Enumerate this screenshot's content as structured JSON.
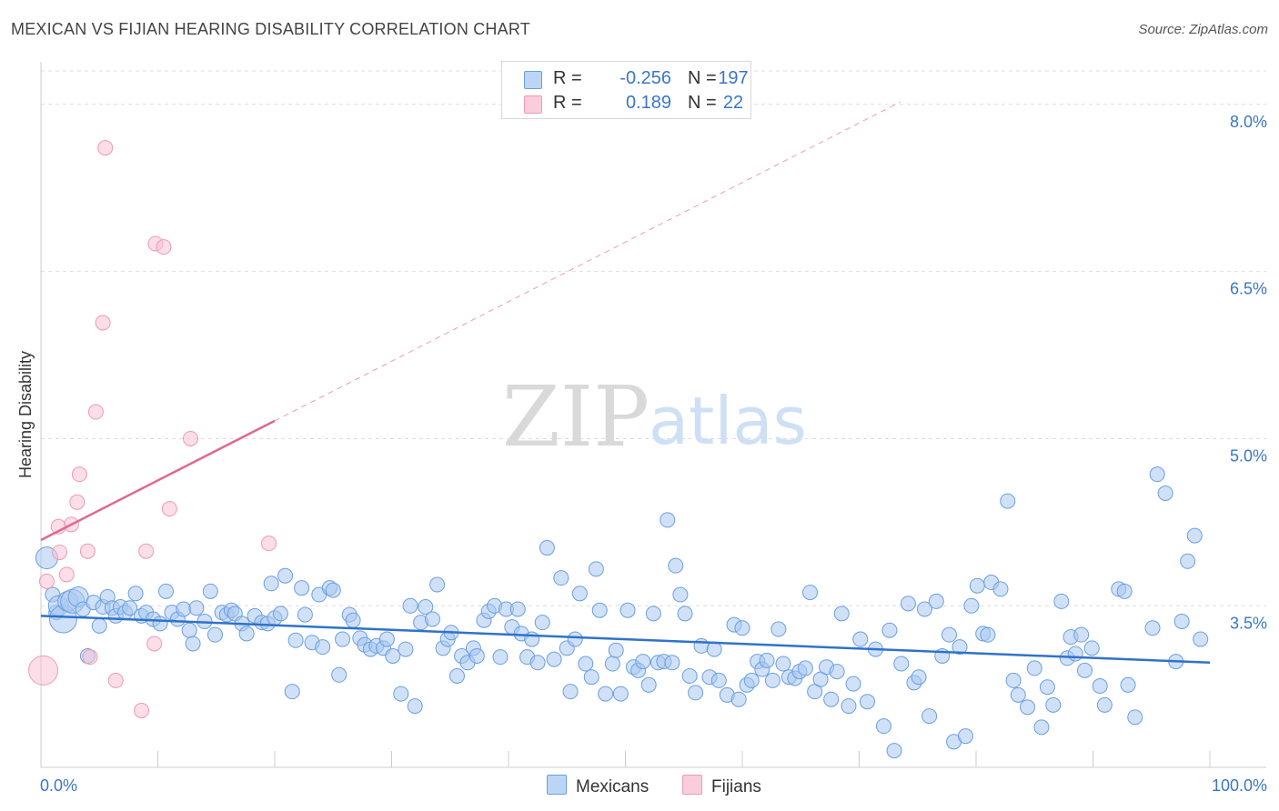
{
  "title": "MEXICAN VS FIJIAN HEARING DISABILITY CORRELATION CHART",
  "source": "Source: ZipAtlas.com",
  "watermark": {
    "zip": "ZIP",
    "atlas": "atlas"
  },
  "legend": {
    "rows": [
      {
        "r_label": "R =",
        "r_value": "-0.256",
        "n_label": "N =",
        "n_value": "197"
      },
      {
        "r_label": "R =",
        "r_value": "0.189",
        "n_label": "N =",
        "n_value": "22"
      }
    ]
  },
  "bottom_legend": {
    "mexicans": "Mexicans",
    "fijians": "Fijians"
  },
  "colors": {
    "blue_fill": "#a9c8f0",
    "blue_stroke": "#6a9fe0",
    "blue_line": "#2f72cc",
    "pink_fill": "#f7c3d3",
    "pink_stroke": "#ee9ab4",
    "pink_line": "#e06890",
    "axis_text": "#3a76c8",
    "grid": "#dddddd"
  },
  "chart_data": {
    "type": "scatter",
    "title": "MEXICAN VS FIJIAN HEARING DISABILITY CORRELATION CHART",
    "xlabel": "",
    "ylabel": "Hearing Disability",
    "xlim": [
      0,
      100
    ],
    "ylim": [
      2.05,
      8.3
    ],
    "x_tick_labels": [
      "0.0%",
      "100.0%"
    ],
    "y_ticks": [
      3.5,
      5.0,
      6.5,
      8.0
    ],
    "y_tick_labels": [
      "3.5%",
      "5.0%",
      "6.5%",
      "8.0%"
    ],
    "series": [
      {
        "name": "Mexicans",
        "r": -0.256,
        "n": 197,
        "trend": {
          "x0": 0,
          "y0": 3.41,
          "x1": 100,
          "y1": 2.99
        },
        "points": [
          [
            0.5,
            3.93
          ],
          [
            1.0,
            3.6
          ],
          [
            1.3,
            3.44
          ],
          [
            1.5,
            3.5
          ],
          [
            1.9,
            3.38
          ],
          [
            2.3,
            3.54
          ],
          [
            2.7,
            3.54
          ],
          [
            3.2,
            3.58
          ],
          [
            3.6,
            3.47
          ],
          [
            4.0,
            3.05
          ],
          [
            4.5,
            3.53
          ],
          [
            5.0,
            3.32
          ],
          [
            5.3,
            3.49
          ],
          [
            5.7,
            3.58
          ],
          [
            6.1,
            3.48
          ],
          [
            6.4,
            3.41
          ],
          [
            6.8,
            3.49
          ],
          [
            7.2,
            3.44
          ],
          [
            7.6,
            3.48
          ],
          [
            8.1,
            3.61
          ],
          [
            8.6,
            3.41
          ],
          [
            9.0,
            3.44
          ],
          [
            9.6,
            3.38
          ],
          [
            10.2,
            3.34
          ],
          [
            10.7,
            3.63
          ],
          [
            11.2,
            3.44
          ],
          [
            11.7,
            3.38
          ],
          [
            12.2,
            3.47
          ],
          [
            12.7,
            3.28
          ],
          [
            13.0,
            3.16
          ],
          [
            13.3,
            3.48
          ],
          [
            14.0,
            3.36
          ],
          [
            14.5,
            3.63
          ],
          [
            14.9,
            3.24
          ],
          [
            15.5,
            3.44
          ],
          [
            15.9,
            3.42
          ],
          [
            16.3,
            3.46
          ],
          [
            16.6,
            3.43
          ],
          [
            17.2,
            3.34
          ],
          [
            17.6,
            3.25
          ],
          [
            18.3,
            3.41
          ],
          [
            18.9,
            3.35
          ],
          [
            19.4,
            3.34
          ],
          [
            19.7,
            3.7
          ],
          [
            20.0,
            3.39
          ],
          [
            20.5,
            3.43
          ],
          [
            20.9,
            3.77
          ],
          [
            21.5,
            2.73
          ],
          [
            21.8,
            3.19
          ],
          [
            22.3,
            3.66
          ],
          [
            22.6,
            3.42
          ],
          [
            23.2,
            3.17
          ],
          [
            23.8,
            3.6
          ],
          [
            24.1,
            3.13
          ],
          [
            24.7,
            3.66
          ],
          [
            25.0,
            3.64
          ],
          [
            25.5,
            2.88
          ],
          [
            25.8,
            3.2
          ],
          [
            26.4,
            3.42
          ],
          [
            26.7,
            3.37
          ],
          [
            27.3,
            3.21
          ],
          [
            27.7,
            3.15
          ],
          [
            28.2,
            3.11
          ],
          [
            28.7,
            3.14
          ],
          [
            29.3,
            3.12
          ],
          [
            29.6,
            3.2
          ],
          [
            30.1,
            3.05
          ],
          [
            30.8,
            2.71
          ],
          [
            31.2,
            3.11
          ],
          [
            31.6,
            3.5
          ],
          [
            32.0,
            2.6
          ],
          [
            32.5,
            3.35
          ],
          [
            32.9,
            3.49
          ],
          [
            33.5,
            3.38
          ],
          [
            33.9,
            3.69
          ],
          [
            34.4,
            3.12
          ],
          [
            34.8,
            3.2
          ],
          [
            35.1,
            3.26
          ],
          [
            35.6,
            2.87
          ],
          [
            36.0,
            3.05
          ],
          [
            36.5,
            2.99
          ],
          [
            37.0,
            3.12
          ],
          [
            37.3,
            3.05
          ],
          [
            37.9,
            3.37
          ],
          [
            38.3,
            3.45
          ],
          [
            38.8,
            3.5
          ],
          [
            39.3,
            3.04
          ],
          [
            39.8,
            3.47
          ],
          [
            40.3,
            3.31
          ],
          [
            40.8,
            3.47
          ],
          [
            41.1,
            3.25
          ],
          [
            41.6,
            3.04
          ],
          [
            42.0,
            3.2
          ],
          [
            42.5,
            2.99
          ],
          [
            42.9,
            3.35
          ],
          [
            43.3,
            4.02
          ],
          [
            43.9,
            3.02
          ],
          [
            44.5,
            3.75
          ],
          [
            45.0,
            3.12
          ],
          [
            45.3,
            2.73
          ],
          [
            45.7,
            3.2
          ],
          [
            46.1,
            3.61
          ],
          [
            46.6,
            2.98
          ],
          [
            47.1,
            2.86
          ],
          [
            47.5,
            3.83
          ],
          [
            47.8,
            3.46
          ],
          [
            48.3,
            2.71
          ],
          [
            48.9,
            2.98
          ],
          [
            49.2,
            3.1
          ],
          [
            49.6,
            2.71
          ],
          [
            50.2,
            3.46
          ],
          [
            50.7,
            2.95
          ],
          [
            51.1,
            2.92
          ],
          [
            51.5,
            3.0
          ],
          [
            52.0,
            2.79
          ],
          [
            52.4,
            3.43
          ],
          [
            52.8,
            2.99
          ],
          [
            53.3,
            3.0
          ],
          [
            53.6,
            4.27
          ],
          [
            54.0,
            2.99
          ],
          [
            54.3,
            3.86
          ],
          [
            54.7,
            3.6
          ],
          [
            55.1,
            3.43
          ],
          [
            55.5,
            2.87
          ],
          [
            56.0,
            2.72
          ],
          [
            56.5,
            3.14
          ],
          [
            57.2,
            2.86
          ],
          [
            57.6,
            3.11
          ],
          [
            58.0,
            2.83
          ],
          [
            58.7,
            2.7
          ],
          [
            59.3,
            3.33
          ],
          [
            59.7,
            2.66
          ],
          [
            60.0,
            3.3
          ],
          [
            60.4,
            2.79
          ],
          [
            60.8,
            2.83
          ],
          [
            61.3,
            3.0
          ],
          [
            61.7,
            2.93
          ],
          [
            62.1,
            3.01
          ],
          [
            62.6,
            2.83
          ],
          [
            63.1,
            3.29
          ],
          [
            63.5,
            2.98
          ],
          [
            64.0,
            2.86
          ],
          [
            64.5,
            2.85
          ],
          [
            64.9,
            2.91
          ],
          [
            65.4,
            2.94
          ],
          [
            65.8,
            3.62
          ],
          [
            66.2,
            2.73
          ],
          [
            66.7,
            2.84
          ],
          [
            67.2,
            2.95
          ],
          [
            67.6,
            2.66
          ],
          [
            68.1,
            2.91
          ],
          [
            68.5,
            3.43
          ],
          [
            69.1,
            2.6
          ],
          [
            69.5,
            2.8
          ],
          [
            70.1,
            3.2
          ],
          [
            70.7,
            2.64
          ],
          [
            71.4,
            3.11
          ],
          [
            72.1,
            2.42
          ],
          [
            72.6,
            3.28
          ],
          [
            73.0,
            2.2
          ],
          [
            73.6,
            2.98
          ],
          [
            74.2,
            3.52
          ],
          [
            74.7,
            2.81
          ],
          [
            75.1,
            2.86
          ],
          [
            75.6,
            3.47
          ],
          [
            76.0,
            2.51
          ],
          [
            76.6,
            3.54
          ],
          [
            77.1,
            3.05
          ],
          [
            77.7,
            3.24
          ],
          [
            78.1,
            2.28
          ],
          [
            78.6,
            3.13
          ],
          [
            79.1,
            2.33
          ],
          [
            79.6,
            3.5
          ],
          [
            80.1,
            3.68
          ],
          [
            80.6,
            3.25
          ],
          [
            81.0,
            3.24
          ],
          [
            81.3,
            3.71
          ],
          [
            82.1,
            3.65
          ],
          [
            82.7,
            4.44
          ],
          [
            83.2,
            2.83
          ],
          [
            83.6,
            2.7
          ],
          [
            84.4,
            2.59
          ],
          [
            85.0,
            2.94
          ],
          [
            85.6,
            2.41
          ],
          [
            86.1,
            2.77
          ],
          [
            86.6,
            2.61
          ],
          [
            87.3,
            3.54
          ],
          [
            87.8,
            3.03
          ],
          [
            88.1,
            3.22
          ],
          [
            88.5,
            3.07
          ],
          [
            89.0,
            3.24
          ],
          [
            89.3,
            2.92
          ],
          [
            89.9,
            3.12
          ],
          [
            90.6,
            2.78
          ],
          [
            91.0,
            2.61
          ],
          [
            92.2,
            3.65
          ],
          [
            92.7,
            3.63
          ],
          [
            93.0,
            2.79
          ],
          [
            93.6,
            2.5
          ],
          [
            95.1,
            3.3
          ],
          [
            95.5,
            4.68
          ],
          [
            96.2,
            4.51
          ],
          [
            97.1,
            3.0
          ],
          [
            97.6,
            3.36
          ],
          [
            98.1,
            3.9
          ],
          [
            98.7,
            4.13
          ],
          [
            99.2,
            3.2
          ]
        ]
      },
      {
        "name": "Fijians",
        "r": 0.189,
        "n": 22,
        "trend": {
          "x0": 0,
          "y0": 4.09,
          "x1": 20,
          "y1": 5.16
        },
        "trend_extension": {
          "x0": 20,
          "y0": 5.16,
          "x1": 73.5,
          "y1": 8.02
        },
        "points": [
          [
            5.5,
            7.61
          ],
          [
            9.8,
            6.75
          ],
          [
            10.5,
            6.72
          ],
          [
            5.3,
            6.04
          ],
          [
            4.7,
            5.24
          ],
          [
            12.8,
            5.0
          ],
          [
            3.3,
            4.68
          ],
          [
            3.1,
            4.43
          ],
          [
            11.0,
            4.37
          ],
          [
            2.6,
            4.23
          ],
          [
            1.5,
            4.21
          ],
          [
            1.6,
            3.98
          ],
          [
            9.0,
            3.99
          ],
          [
            4.0,
            3.99
          ],
          [
            19.5,
            4.06
          ],
          [
            2.2,
            3.78
          ],
          [
            0.5,
            3.72
          ],
          [
            9.7,
            3.16
          ],
          [
            4.2,
            3.04
          ],
          [
            6.4,
            2.83
          ],
          [
            8.6,
            2.56
          ],
          [
            0.2,
            2.92
          ]
        ]
      }
    ]
  }
}
